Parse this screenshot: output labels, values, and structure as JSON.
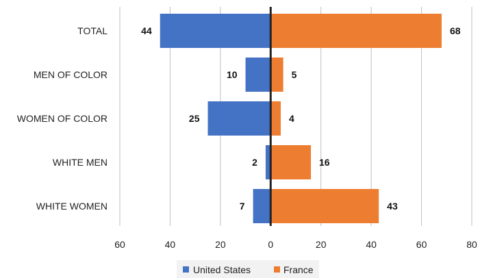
{
  "chart_data": {
    "type": "bar",
    "orientation": "horizontal",
    "layout": "diverging",
    "categories": [
      "TOTAL",
      "MEN OF COLOR",
      "WOMEN OF COLOR",
      "WHITE MEN",
      "WHITE WOMEN"
    ],
    "series": [
      {
        "name": "United States",
        "values": [
          44,
          10,
          25,
          2,
          7
        ],
        "direction": "left",
        "color": "#4472C4"
      },
      {
        "name": "France",
        "values": [
          68,
          5,
          4,
          16,
          43
        ],
        "direction": "right",
        "color": "#ED7D31"
      }
    ],
    "xlim": [
      -60,
      80
    ],
    "ticks": [
      -60,
      -40,
      -20,
      0,
      20,
      40,
      60,
      80
    ],
    "tick_labels": [
      "60",
      "40",
      "20",
      "0",
      "20",
      "40",
      "60",
      "80"
    ],
    "title": "",
    "xlabel": "",
    "ylabel": "",
    "grid": true,
    "legend_position": "bottom",
    "data_labels": true
  }
}
